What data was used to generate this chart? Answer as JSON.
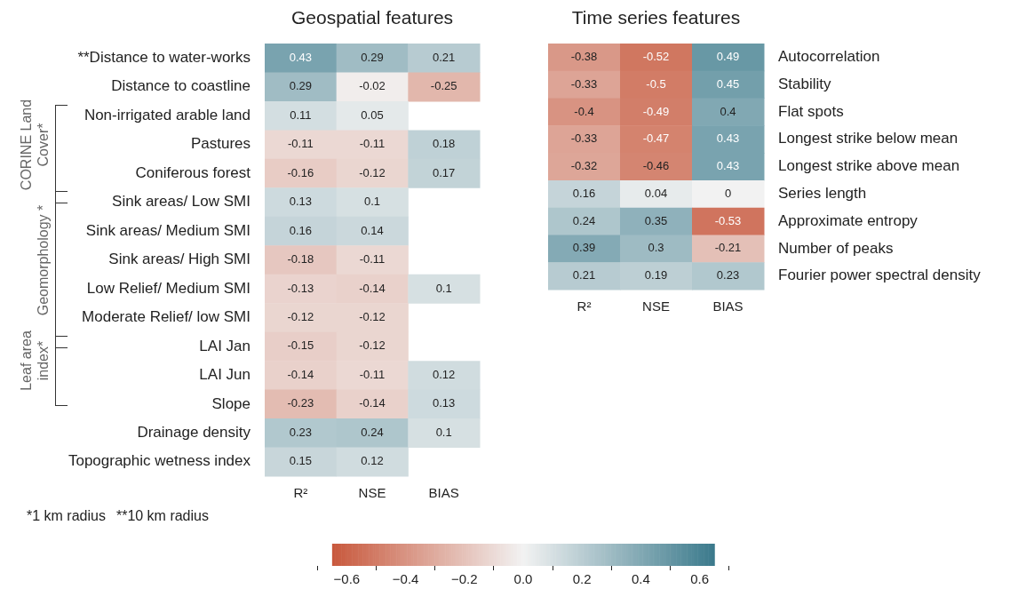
{
  "chart_data": [
    {
      "type": "heatmap",
      "title": "Geospatial features",
      "categories": [
        "R²",
        "NSE",
        "BIAS"
      ],
      "y_categories": [
        "**Distance to water-works",
        "Distance to coastline",
        "Non-irrigated arable land",
        "Pastures",
        "Coniferous forest",
        "Sink areas/ Low SMI",
        "Sink areas/ Medium SMI",
        "Sink areas/ High SMI",
        "Low Relief/ Medium SMI",
        "Moderate Relief/ low SMI",
        "LAI Jan",
        "LAI Jun",
        "Slope",
        "Drainage density",
        "Topographic wetness index"
      ],
      "cells": [
        [
          0.43,
          0.29,
          0.21
        ],
        [
          0.29,
          -0.02,
          -0.25
        ],
        [
          0.11,
          0.05,
          null
        ],
        [
          -0.11,
          -0.11,
          0.18
        ],
        [
          -0.16,
          -0.12,
          0.17
        ],
        [
          0.13,
          0.1,
          null
        ],
        [
          0.16,
          0.14,
          null
        ],
        [
          -0.18,
          -0.11,
          null
        ],
        [
          -0.13,
          -0.14,
          0.1
        ],
        [
          -0.12,
          -0.12,
          null
        ],
        [
          -0.15,
          -0.12,
          null
        ],
        [
          -0.14,
          -0.11,
          0.12
        ],
        [
          -0.23,
          -0.14,
          0.13
        ],
        [
          0.23,
          0.24,
          0.1
        ],
        [
          0.15,
          0.12,
          null
        ]
      ],
      "data_labels": true,
      "clim": [
        -0.65,
        0.65
      ],
      "cticks": [
        {
          "value": -0.6,
          "label": "−0.6"
        },
        {
          "value": -0.4,
          "label": "−0.4"
        },
        {
          "value": -0.2,
          "label": "−0.2"
        },
        {
          "value": 0,
          "label": "0.0"
        },
        {
          "value": 0.2,
          "label": "0.2"
        },
        {
          "value": 0.4,
          "label": "0.4"
        },
        {
          "value": 0.6,
          "label": "0.6"
        }
      ],
      "annotations": [
        "CORINE Land Cover*",
        "Geomorphology *",
        "Leaf area index*",
        "*1 km radius",
        "**10 km radius"
      ]
    },
    {
      "type": "heatmap",
      "title": "Time series features",
      "categories": [
        "R²",
        "NSE",
        "BIAS"
      ],
      "y_categories": [
        "Autocorrelation",
        "Stability",
        "Flat spots",
        "Longest strike below mean",
        "Longest strike above mean",
        "Series length",
        "Approximate entropy",
        "Number of peaks",
        "Fourier power spectral density"
      ],
      "cells": [
        [
          -0.38,
          -0.52,
          0.49
        ],
        [
          -0.33,
          -0.5,
          0.45
        ],
        [
          -0.4,
          -0.49,
          0.4
        ],
        [
          -0.33,
          -0.47,
          0.43
        ],
        [
          -0.32,
          -0.46,
          0.43
        ],
        [
          0.16,
          0.04,
          0
        ],
        [
          0.24,
          0.35,
          -0.53
        ],
        [
          0.39,
          0.3,
          -0.21
        ],
        [
          0.21,
          0.19,
          0.23
        ]
      ],
      "data_labels": true
    }
  ]
}
